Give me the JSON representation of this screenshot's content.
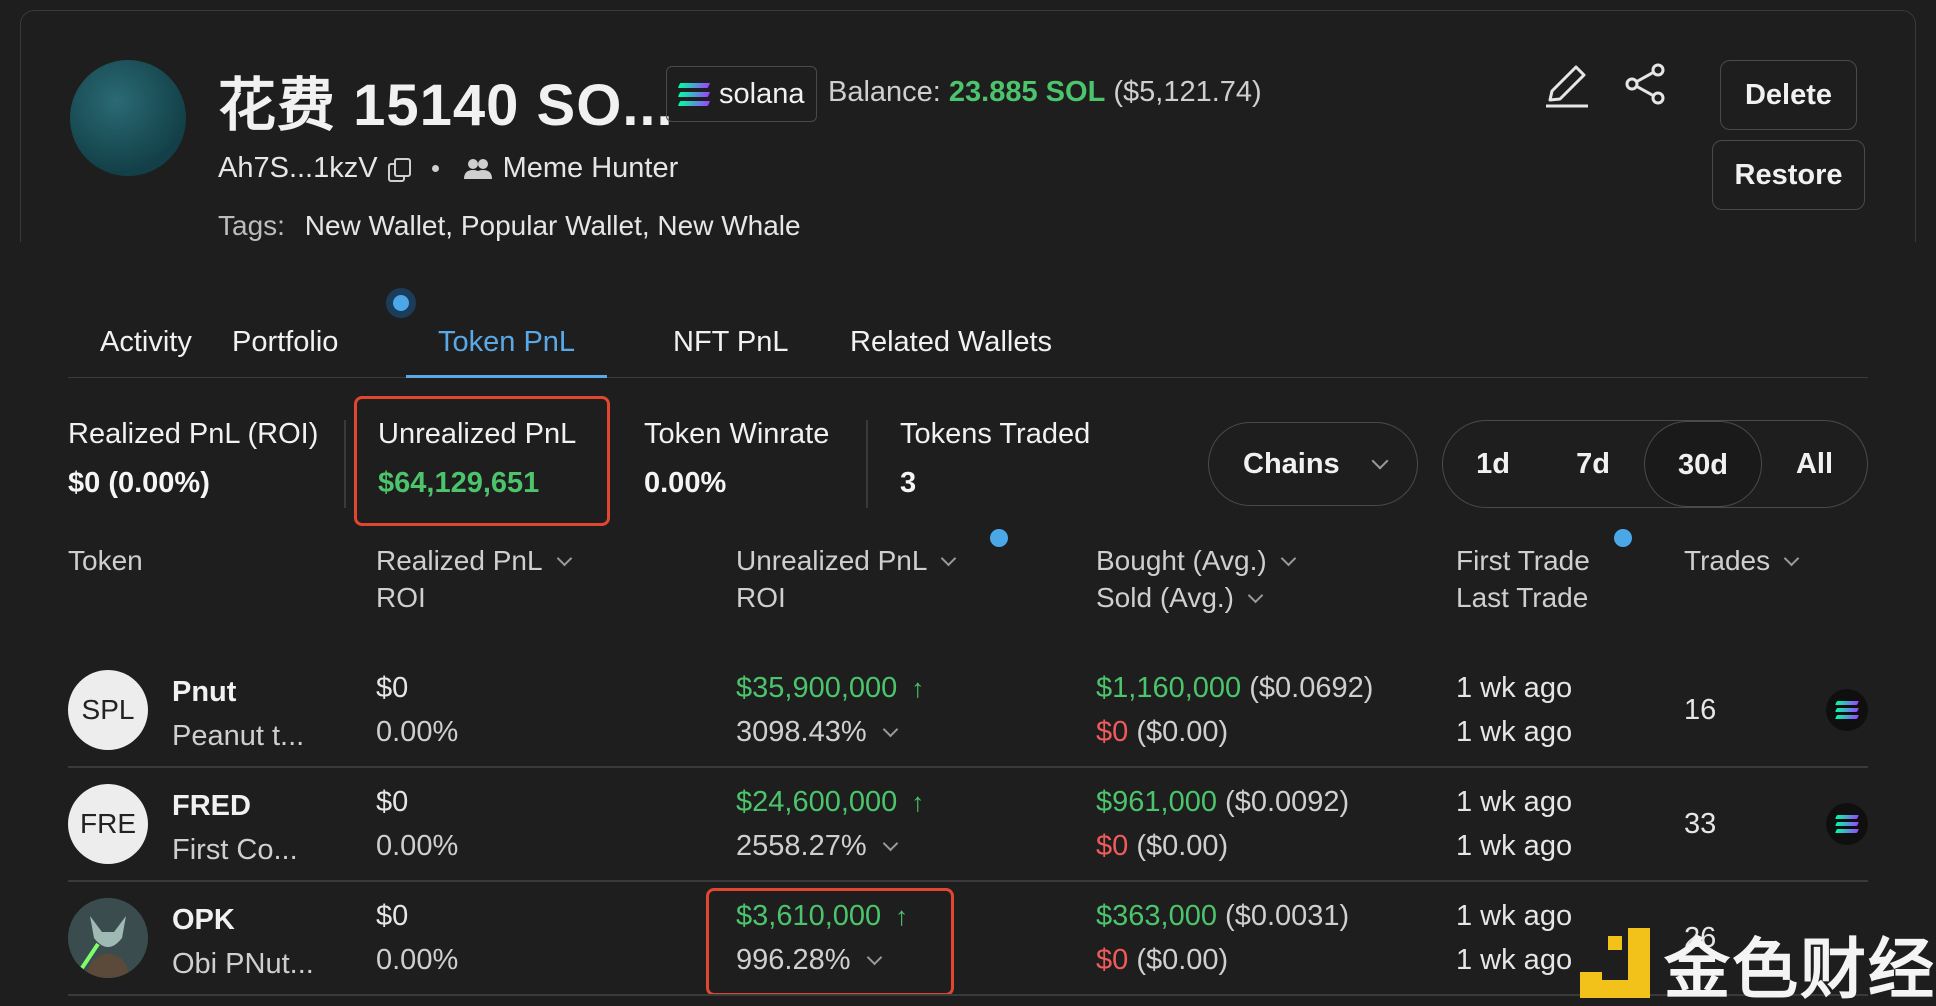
{
  "header": {
    "wallet_title": "花费 15140 SO...",
    "chain_label": "solana",
    "balance_label": "Balance:",
    "balance_sol": "23.885 SOL",
    "balance_usd": "($5,121.74)",
    "address": "Ah7S...1kzV",
    "user_type": "Meme Hunter",
    "tags_label": "Tags:",
    "tags": "New Wallet, Popular Wallet, New Whale",
    "delete_label": "Delete",
    "restore_label": "Restore"
  },
  "tabs": [
    {
      "label": "Activity"
    },
    {
      "label": "Portfolio"
    },
    {
      "label": "Token PnL",
      "active": true
    },
    {
      "label": "NFT PnL"
    },
    {
      "label": "Related Wallets"
    }
  ],
  "stats": {
    "realized_label": "Realized PnL (ROI)",
    "realized_value": "$0 (0.00%)",
    "unrealized_label": "Unrealized PnL",
    "unrealized_value": "$64,129,651",
    "winrate_label": "Token Winrate",
    "winrate_value": "0.00%",
    "traded_label": "Tokens Traded",
    "traded_value": "3"
  },
  "filters": {
    "chains_label": "Chains",
    "ranges": [
      "1d",
      "7d",
      "30d",
      "All"
    ],
    "selected_range": "30d"
  },
  "table": {
    "headers": {
      "token": "Token",
      "realized": "Realized PnL",
      "realized_sub": "ROI",
      "unrealized": "Unrealized PnL",
      "unrealized_sub": "ROI",
      "bought": "Bought (Avg.)",
      "sold": "Sold (Avg.)",
      "first_trade": "First Trade",
      "last_trade": "Last Trade",
      "trades": "Trades"
    },
    "rows": [
      {
        "avatar": "SPL",
        "symbol": "Pnut",
        "name": "Peanut t...",
        "realized": "$0",
        "realized_roi": "0.00%",
        "unrealized": "$35,900,000",
        "unrealized_roi": "3098.43%",
        "bought": "$1,160,000",
        "bought_avg": "($0.0692)",
        "sold": "$0",
        "sold_avg": "($0.00)",
        "first_trade": "1 wk ago",
        "last_trade": "1 wk ago",
        "trades": "16"
      },
      {
        "avatar": "FRE",
        "symbol": "FRED",
        "name": "First Co...",
        "realized": "$0",
        "realized_roi": "0.00%",
        "unrealized": "$24,600,000",
        "unrealized_roi": "2558.27%",
        "bought": "$961,000",
        "bought_avg": "($0.0092)",
        "sold": "$0",
        "sold_avg": "($0.00)",
        "first_trade": "1 wk ago",
        "last_trade": "1 wk ago",
        "trades": "33"
      },
      {
        "avatar": "",
        "symbol": "OPK",
        "name": "Obi PNut...",
        "realized": "$0",
        "realized_roi": "0.00%",
        "unrealized": "$3,610,000",
        "unrealized_roi": "996.28%",
        "bought": "$363,000",
        "bought_avg": "($0.0031)",
        "sold": "$0",
        "sold_avg": "($0.00)",
        "first_trade": "1 wk ago",
        "last_trade": "1 wk ago",
        "trades": "26"
      }
    ]
  },
  "watermark": "金色财经",
  "colors": {
    "positive": "#4cc46b",
    "negative": "#ef5a5a",
    "accent": "#5aa9e6",
    "highlight_box": "#e0472e"
  }
}
